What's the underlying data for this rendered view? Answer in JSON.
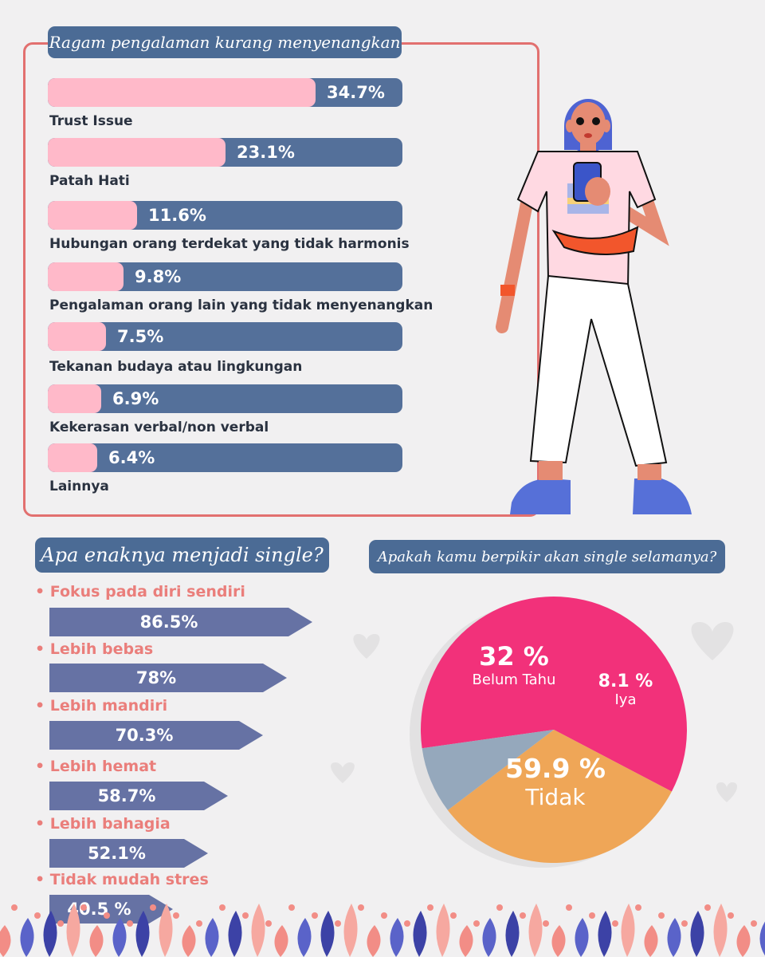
{
  "experiences": {
    "title": "Ragam pengalaman kurang menyenangkan",
    "items": [
      {
        "label": "Trust Issue",
        "value": 34.7,
        "value_label": "34.7%"
      },
      {
        "label": "Patah Hati",
        "value": 23.1,
        "value_label": "23.1%"
      },
      {
        "label": "Hubungan orang terdekat yang tidak harmonis",
        "value": 11.6,
        "value_label": "11.6%"
      },
      {
        "label": "Pengalaman orang lain yang tidak menyenangkan",
        "value": 9.8,
        "value_label": "9.8%"
      },
      {
        "label": "Tekanan budaya atau lingkungan",
        "value": 7.5,
        "value_label": "7.5%"
      },
      {
        "label": "Kekerasan verbal/non verbal",
        "value": 6.9,
        "value_label": "6.9%"
      },
      {
        "label": "Lainnya",
        "value": 6.4,
        "value_label": "6.4%"
      }
    ]
  },
  "single_benefits": {
    "title": "Apa enaknya menjadi single?",
    "items": [
      {
        "label": "Fokus pada diri sendiri",
        "value": 86.5,
        "value_label": "86.5%"
      },
      {
        "label": "Lebih bebas",
        "value": 78,
        "value_label": "78%"
      },
      {
        "label": "Lebih mandiri",
        "value": 70.3,
        "value_label": "70.3%"
      },
      {
        "label": "Lebih hemat",
        "value": 58.7,
        "value_label": "58.7%"
      },
      {
        "label": "Lebih bahagia",
        "value": 52.1,
        "value_label": "52.1%"
      },
      {
        "label": "Tidak mudah stres",
        "value": 40.5,
        "value_label": "40.5 %"
      }
    ]
  },
  "single_forever": {
    "title": "Apakah kamu berpikir akan single selamanya?",
    "slices": [
      {
        "label": "Tidak",
        "value": 59.9,
        "value_label": "59.9 %",
        "color": "#f2317a"
      },
      {
        "label": "Belum Tahu",
        "value": 32,
        "value_label": "32 %",
        "color": "#efa657"
      },
      {
        "label": "Iya",
        "value": 8.1,
        "value_label": "8.1 %",
        "color": "#95a8bc"
      }
    ]
  },
  "chart_data": [
    {
      "type": "bar",
      "title": "Ragam pengalaman kurang menyenangkan",
      "categories": [
        "Trust Issue",
        "Patah Hati",
        "Hubungan orang terdekat yang tidak harmonis",
        "Pengalaman orang lain yang tidak menyenangkan",
        "Tekanan budaya atau lingkungan",
        "Kekerasan verbal/non verbal",
        "Lainnya"
      ],
      "values": [
        34.7,
        23.1,
        11.6,
        9.8,
        7.5,
        6.9,
        6.4
      ],
      "unit": "%"
    },
    {
      "type": "bar",
      "title": "Apa enaknya menjadi single?",
      "categories": [
        "Fokus pada diri sendiri",
        "Lebih bebas",
        "Lebih mandiri",
        "Lebih hemat",
        "Lebih bahagia",
        "Tidak mudah stres"
      ],
      "values": [
        86.5,
        78,
        70.3,
        58.7,
        52.1,
        40.5
      ],
      "unit": "%"
    },
    {
      "type": "pie",
      "title": "Apakah kamu berpikir akan single selamanya?",
      "categories": [
        "Tidak",
        "Belum Tahu",
        "Iya"
      ],
      "values": [
        59.9,
        32,
        8.1
      ],
      "unit": "%"
    }
  ],
  "colors": {
    "title_pill": "#4b6b95",
    "bar_track": "#54709a",
    "bar_fill": "#ffb9c9",
    "frame": "#e2706f",
    "arrow": "#6672a4",
    "bullet_text": "#ea7e7b"
  }
}
